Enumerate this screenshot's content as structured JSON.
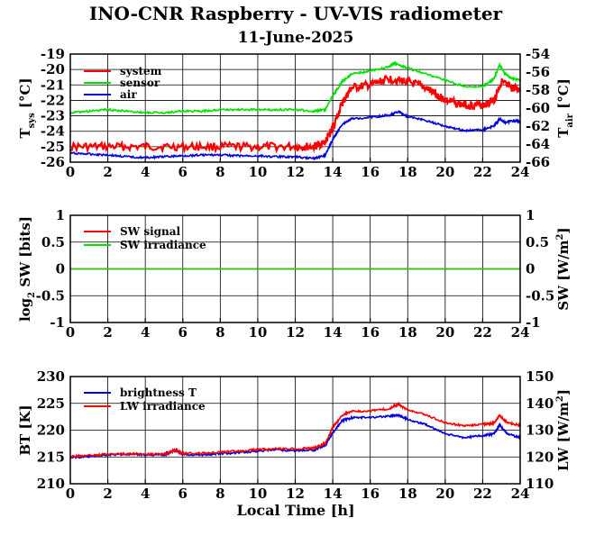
{
  "figure": {
    "title": "INO-CNR Raspberry - UV-VIS radiometer",
    "subtitle": "11-June-2025",
    "xlabel": "Local Time [h]"
  },
  "colors": {
    "red": "#ff0000",
    "green": "#00e000",
    "blue": "#0000dd"
  },
  "chart_data": [
    {
      "type": "line",
      "panel": "temperature",
      "xlim": [
        0,
        24
      ],
      "xticks": [
        0,
        2,
        4,
        6,
        8,
        10,
        12,
        14,
        16,
        18,
        20,
        22,
        24
      ],
      "ylim": [
        -26,
        -19
      ],
      "yticks": [
        -26,
        -25,
        -24,
        -23,
        -22,
        -21,
        -20,
        -19
      ],
      "ylabel_main": "T",
      "ylabel_sub": "sys",
      "ylabel_unit": "[°C]",
      "y2lim": [
        -66,
        -54
      ],
      "y2ticks": [
        -66,
        -64,
        -62,
        -60,
        -58,
        -56,
        -54
      ],
      "y2label_main": "T",
      "y2label_sub": "air",
      "y2label_unit": "[°C]",
      "grid": true,
      "legend": "top-left",
      "series": [
        {
          "name": "system",
          "color": "#ff0000",
          "axis": "left",
          "x": [
            0,
            2,
            4,
            6,
            8,
            10,
            12,
            13,
            13.6,
            14,
            14.5,
            15,
            16,
            17,
            18,
            19,
            19.5,
            20,
            21,
            22,
            22.6,
            23,
            23.5,
            24
          ],
          "y": [
            -25,
            -25,
            -25,
            -25,
            -25,
            -25,
            -25,
            -25,
            -24.7,
            -23.8,
            -22.2,
            -21.2,
            -21,
            -20.6,
            -20.8,
            -21.2,
            -21.6,
            -22,
            -22.3,
            -22.3,
            -22,
            -20.8,
            -21.2,
            -21.3
          ]
        },
        {
          "name": "sensor",
          "color": "#00e000",
          "axis": "left",
          "x": [
            0,
            1,
            2,
            3,
            4,
            5,
            6,
            7,
            8,
            9,
            10,
            11,
            12,
            13,
            13.6,
            14,
            14.5,
            15,
            16,
            17,
            17.3,
            18,
            19,
            20,
            21,
            22,
            22.6,
            22.9,
            23.2,
            23.6,
            24
          ],
          "y": [
            -22.8,
            -22.7,
            -22.6,
            -22.7,
            -22.8,
            -22.8,
            -22.7,
            -22.7,
            -22.6,
            -22.6,
            -22.6,
            -22.6,
            -22.6,
            -22.7,
            -22.6,
            -21.7,
            -20.8,
            -20.3,
            -20.1,
            -19.8,
            -19.6,
            -19.9,
            -20.3,
            -20.7,
            -21.1,
            -21.1,
            -20.6,
            -19.7,
            -20.3,
            -20.6,
            -20.7
          ]
        },
        {
          "name": "air",
          "color": "#0000dd",
          "axis": "right",
          "x": [
            0,
            1,
            2,
            3,
            4,
            5,
            6,
            7,
            8,
            9,
            10,
            11,
            12,
            13,
            13.6,
            14,
            14.5,
            15,
            16,
            17,
            17.5,
            18,
            19,
            20,
            21,
            22,
            22.6,
            22.9,
            23.2,
            23.6,
            24
          ],
          "y": [
            -65,
            -65.1,
            -65.2,
            -65.4,
            -65.5,
            -65.4,
            -65.3,
            -65.2,
            -65.2,
            -65.3,
            -65.3,
            -65.4,
            -65.4,
            -65.6,
            -65.2,
            -63.5,
            -61.8,
            -61.2,
            -61,
            -60.8,
            -60.4,
            -60.9,
            -61.4,
            -62,
            -62.5,
            -62.4,
            -62,
            -61.2,
            -61.6,
            -61.4,
            -61.5
          ]
        }
      ]
    },
    {
      "type": "line",
      "panel": "shortwave",
      "xlim": [
        0,
        24
      ],
      "xticks": [
        0,
        2,
        4,
        6,
        8,
        10,
        12,
        14,
        16,
        18,
        20,
        22,
        24
      ],
      "ylim": [
        -1,
        1
      ],
      "yticks": [
        -1,
        -0.5,
        0,
        0.5,
        1
      ],
      "ylabel_main": "log",
      "ylabel_sub": "2",
      "ylabel_unit": " SW [bits]",
      "y2lim": [
        -1,
        1
      ],
      "y2ticks": [
        -1,
        -0.5,
        0,
        0.5,
        1
      ],
      "y2label_main": "SW [W/m",
      "y2label_sup": "2",
      "y2label_unit": "]",
      "grid": true,
      "legend": "top-left",
      "series": [
        {
          "name": "SW signal",
          "color": "#ff0000",
          "axis": "left",
          "x": [
            0,
            24
          ],
          "y": [
            0,
            0
          ]
        },
        {
          "name": "SW irradiance",
          "color": "#00e000",
          "axis": "right",
          "x": [
            0,
            24
          ],
          "y": [
            0,
            0
          ]
        }
      ]
    },
    {
      "type": "line",
      "panel": "longwave",
      "xlim": [
        0,
        24
      ],
      "xticks": [
        0,
        2,
        4,
        6,
        8,
        10,
        12,
        14,
        16,
        18,
        20,
        22,
        24
      ],
      "ylim": [
        210,
        230
      ],
      "yticks": [
        210,
        215,
        220,
        225,
        230
      ],
      "ylabel_main": "BT [K]",
      "y2lim": [
        110,
        150
      ],
      "y2ticks": [
        110,
        120,
        130,
        140,
        150
      ],
      "y2label_main": "LW [W/m",
      "y2label_sup": "2",
      "y2label_unit": "]",
      "grid": true,
      "legend": "top-left",
      "series": [
        {
          "name": "brightness T",
          "color": "#0000dd",
          "axis": "left",
          "x": [
            0,
            1,
            2,
            3,
            4,
            5,
            5.6,
            6,
            7,
            8,
            9,
            10,
            11,
            12,
            13,
            13.6,
            14,
            14.5,
            15,
            16,
            17,
            17.5,
            18,
            19,
            20,
            21,
            22,
            22.6,
            22.9,
            23.3,
            24
          ],
          "y": [
            214.9,
            215.1,
            215.4,
            215.5,
            215.4,
            215.4,
            216.3,
            215.5,
            215.4,
            215.6,
            215.8,
            216.1,
            216.3,
            216.2,
            216.3,
            217.2,
            219.5,
            221.8,
            222.3,
            222.4,
            222.6,
            222.8,
            222,
            221,
            219.3,
            218.6,
            219,
            219.3,
            221,
            219.3,
            218.6
          ]
        },
        {
          "name": "LW irradiance",
          "color": "#ff0000",
          "axis": "right",
          "x": [
            0,
            1,
            2,
            3,
            4,
            5,
            5.6,
            6,
            7,
            8,
            9,
            10,
            11,
            12,
            13,
            13.6,
            14,
            14.5,
            15,
            16,
            17,
            17.5,
            18,
            19,
            20,
            21,
            22,
            22.6,
            22.9,
            23.3,
            24
          ],
          "y": [
            120.2,
            120.6,
            121,
            121.2,
            121.1,
            121,
            122.6,
            121.3,
            121.4,
            121.8,
            122.3,
            122.7,
            123.1,
            123,
            123.3,
            125,
            131,
            135.5,
            137,
            137.2,
            138,
            139.6,
            137.6,
            135.6,
            132.8,
            131.6,
            132.2,
            132.6,
            135.4,
            132.8,
            131.8
          ]
        }
      ]
    }
  ]
}
